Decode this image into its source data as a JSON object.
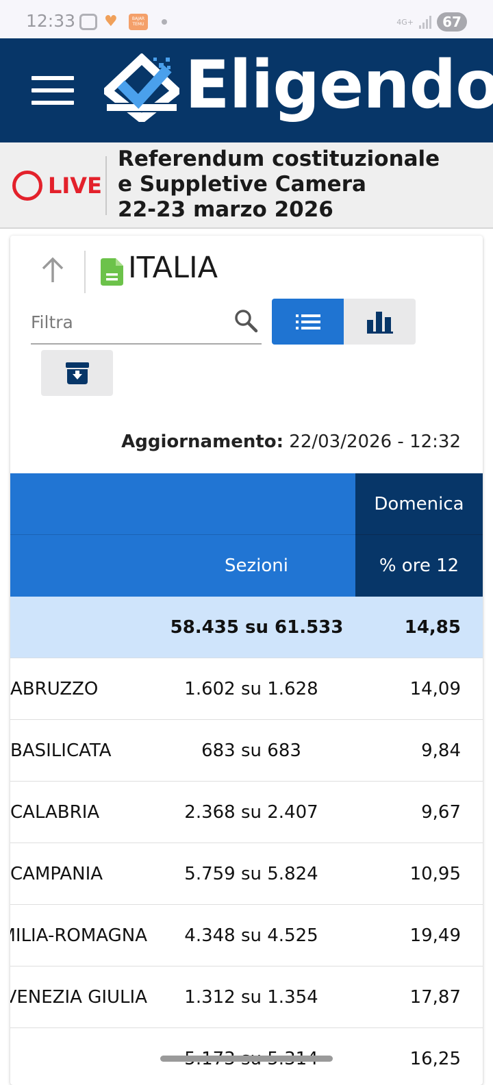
{
  "status_bar": {
    "time": "12:33",
    "network": "4G+",
    "battery": "67",
    "temu_label": "BAJAR TEMU"
  },
  "header": {
    "brand": "Eligendo"
  },
  "live_banner": {
    "live_label": "LIVE",
    "title_line1": "Referendum costituzionale",
    "title_line2": "e Suppletive Camera",
    "title_line3": "22-23 marzo 2026"
  },
  "panel": {
    "region": "ITALIA",
    "filter_placeholder": "Filtra",
    "update_label": "Aggiornamento:",
    "update_value": "22/03/2026 - 12:32"
  },
  "table": {
    "header_day": "Domenica",
    "header_sections": "Sezioni",
    "header_pct": "% ore 12",
    "total": {
      "sections": "58.435 su 61.533",
      "pct": "14,85"
    },
    "rows": [
      {
        "name": "ABRUZZO",
        "sections": "1.602 su 1.628",
        "pct": "14,09"
      },
      {
        "name": "BASILICATA",
        "sections": "683 su 683",
        "pct": "9,84"
      },
      {
        "name": "CALABRIA",
        "sections": "2.368 su 2.407",
        "pct": "9,67"
      },
      {
        "name": "CAMPANIA",
        "sections": "5.759 su 5.824",
        "pct": "10,95"
      },
      {
        "name": "EMILIA-ROMAGNA",
        "sections": "4.348 su 4.525",
        "pct": "19,49"
      },
      {
        "name": "FRIULI-VENEZIA GIULIA",
        "sections": "1.312 su 1.354",
        "pct": "17,87"
      },
      {
        "name": "",
        "sections": "5.173 su 5.314",
        "pct": "16,25"
      }
    ]
  },
  "colors": {
    "header_bg": "#073668",
    "accent_blue": "#1f74d2",
    "live_red": "#e3212b",
    "total_row_bg": "#cfe4fb"
  }
}
